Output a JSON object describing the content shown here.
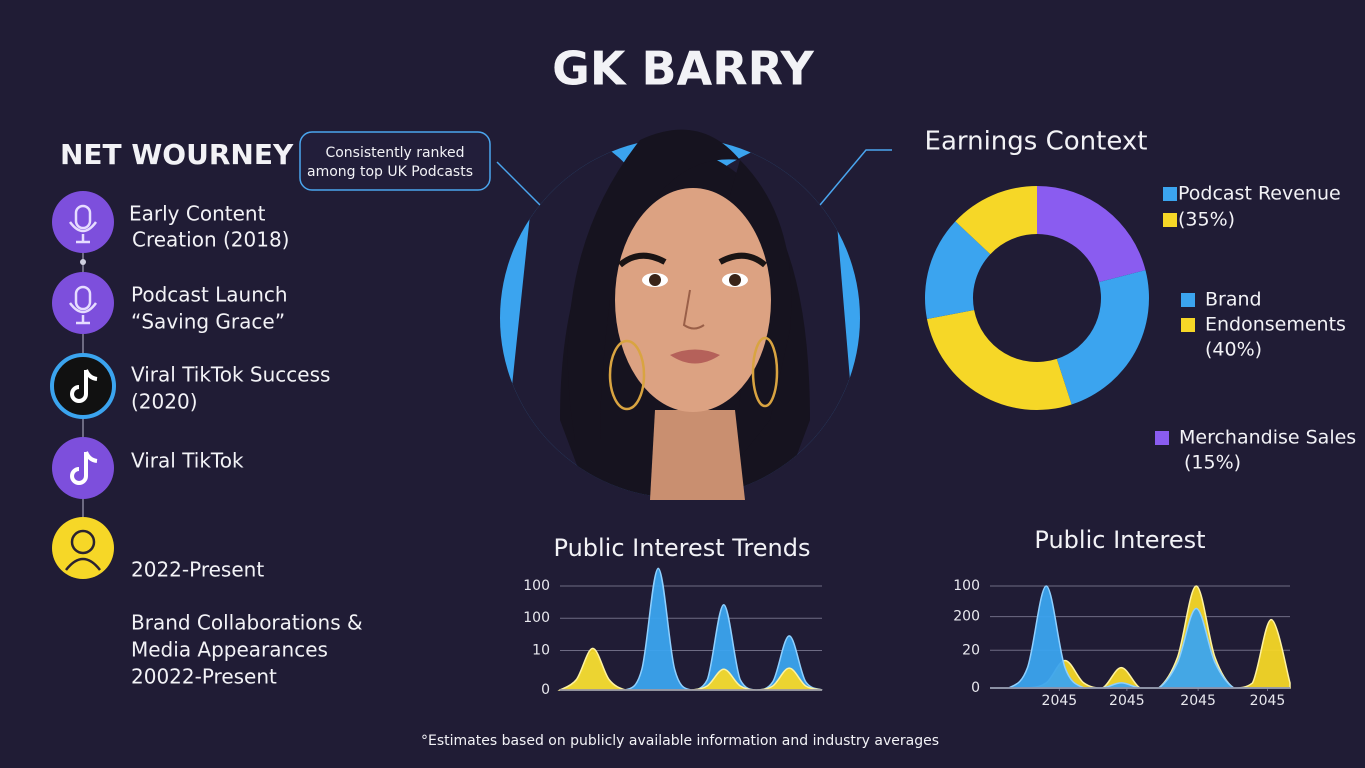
{
  "title": "GK BARRY",
  "timeline": {
    "heading": "NET WOURNEY",
    "items": [
      {
        "lines": [
          "Early Content",
          "Creation (2018)"
        ]
      },
      {
        "lines": [
          "Podcast Launch",
          "“Saving Grace”"
        ]
      },
      {
        "lines": [
          "Viral TikTok Success",
          "(2020)"
        ]
      },
      {
        "lines": [
          "Viral TikTok"
        ]
      },
      {
        "lines": [
          "2022-Present"
        ]
      }
    ],
    "note": [
      "Brand Collaborations &",
      "Media Appearances",
      "20022-Present"
    ]
  },
  "callout": [
    "Consistently ranked",
    "among top UK Podcasts"
  ],
  "chart_data": [
    {
      "type": "pie",
      "title": "Earnings Context",
      "values": [
        21,
        24,
        27,
        15,
        13
      ],
      "colors": [
        "#8a5cf0",
        "#3ba4ef",
        "#f6d727",
        "#3ba4ef",
        "#f6d727"
      ],
      "legend": [
        {
          "label": "Podcast Revenue",
          "color": "#3ba4ef"
        },
        {
          "label": "(35%)",
          "color": "#f6d727"
        },
        {
          "label": "Brand",
          "color": "#3ba4ef"
        },
        {
          "label": "Endonsements",
          "color": "#f6d727"
        },
        {
          "label": "(40%)"
        },
        {
          "label": "Merchandise Sales",
          "color": "#8a5cf0"
        },
        {
          "label": "(15%)"
        }
      ]
    },
    {
      "type": "area",
      "title": "Public Interest Trends",
      "x": [
        0,
        1,
        2,
        3,
        4,
        5,
        6,
        7,
        8,
        9,
        10,
        11,
        12,
        13,
        14,
        15,
        16
      ],
      "xlim": [
        0,
        16
      ],
      "ylim": [
        0,
        125
      ],
      "yticks": [
        0,
        {
          "value": 38,
          "label": "10"
        },
        {
          "value": 69,
          "label": "100"
        },
        100
      ],
      "grid": true,
      "series": [
        {
          "color": "#3ba4ef",
          "values": [
            0,
            8,
            36,
            8,
            0,
            20,
            117,
            20,
            0,
            10,
            82,
            10,
            0,
            8,
            52,
            8,
            0
          ]
        },
        {
          "color": "#f6d727",
          "values": [
            0,
            10,
            40,
            10,
            0,
            0,
            0,
            0,
            0,
            4,
            20,
            4,
            0,
            4,
            21,
            4,
            0
          ]
        }
      ]
    },
    {
      "type": "area",
      "title": "Public Interest",
      "x": [
        0,
        1,
        2,
        3,
        4,
        5,
        6,
        7,
        8,
        9,
        10,
        11,
        12,
        13,
        14,
        15,
        16
      ],
      "xlim": [
        0,
        16
      ],
      "xticks": [
        {
          "value": 3.7,
          "label": "2045"
        },
        {
          "value": 7.3,
          "label": "2045"
        },
        {
          "value": 11.1,
          "label": "2045"
        },
        {
          "value": 14.8,
          "label": "2045"
        }
      ],
      "ylim": [
        0,
        125
      ],
      "yticks": [
        0,
        {
          "value": 37,
          "label": "20"
        },
        {
          "value": 70,
          "label": "200"
        },
        100
      ],
      "grid": true,
      "series": [
        {
          "color": "#f6d727",
          "values": [
            0,
            0,
            0,
            5,
            27,
            5,
            0,
            20,
            0,
            0,
            30,
            100,
            30,
            0,
            5,
            67,
            5
          ]
        },
        {
          "color": "#3ba4ef",
          "values": [
            0,
            0,
            20,
            100,
            20,
            0,
            0,
            5,
            0,
            0,
            25,
            78,
            25,
            0,
            0,
            0,
            0
          ]
        }
      ]
    }
  ],
  "footnote": "°Estimates based on publicly available information and industry averages"
}
